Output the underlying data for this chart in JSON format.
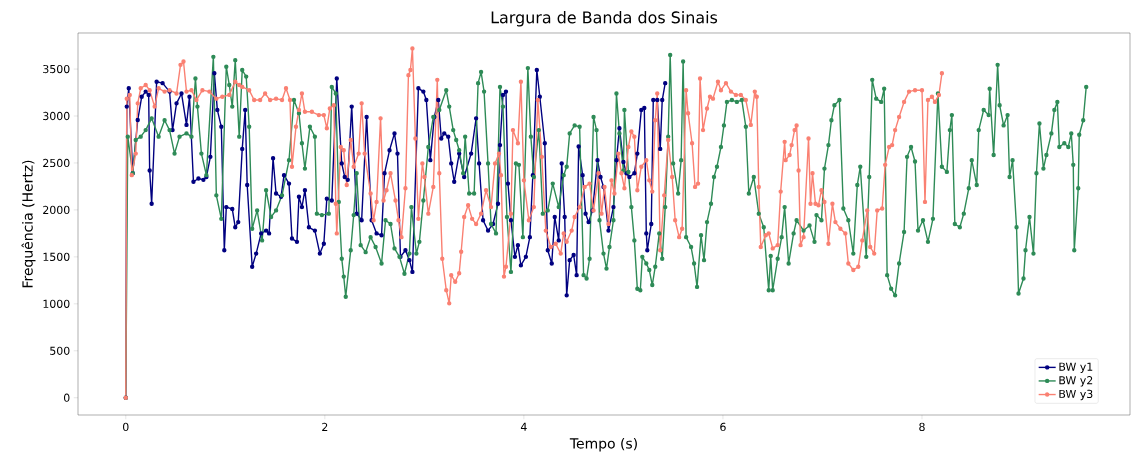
{
  "chart_data": {
    "type": "line",
    "title": "Largura de Banda dos Sinais",
    "xlabel": "Tempo (s)",
    "ylabel": "Frequência (Hertz)",
    "xlim": [
      -0.48,
      10.09
    ],
    "ylim": [
      -184,
      3884
    ],
    "xticks": [
      0,
      2,
      4,
      6,
      8
    ],
    "yticks": [
      0,
      500,
      1000,
      1500,
      2000,
      2500,
      3000,
      3500
    ],
    "grid": false,
    "legend": "bottom right",
    "marker": "circle",
    "line_style": "solid",
    "series": [
      {
        "name": "BW y1",
        "color": "#000080",
        "x": [
          0,
          0.01,
          0.03,
          0.07,
          0.12,
          0.16,
          0.2,
          0.23,
          0.24,
          0.26,
          0.31,
          0.37,
          0.44,
          0.47,
          0.51,
          0.56,
          0.61,
          0.64,
          0.68,
          0.73,
          0.78,
          0.81,
          0.85,
          0.89,
          0.92,
          0.96,
          0.99,
          1.01,
          1.07,
          1.1,
          1.13,
          1.17,
          1.2,
          1.22,
          1.27,
          1.31,
          1.36,
          1.41,
          1.44,
          1.48,
          1.51,
          1.56,
          1.59,
          1.64,
          1.67,
          1.72,
          1.74,
          1.77,
          1.8,
          1.84,
          1.9,
          1.95,
          1.99,
          2.02,
          2.07,
          2.12,
          2.17,
          2.2,
          2.23,
          2.27,
          2.32,
          2.37,
          2.42,
          2.47,
          2.52,
          2.57,
          2.6,
          2.65,
          2.7,
          2.73,
          2.76,
          2.81,
          2.85,
          2.88,
          2.94,
          2.99,
          3.02,
          3.06,
          3.1,
          3.14,
          3.17,
          3.2,
          3.24,
          3.27,
          3.3,
          3.35,
          3.4,
          3.47,
          3.52,
          3.55,
          3.59,
          3.64,
          3.69,
          3.74,
          3.76,
          3.79,
          3.82,
          3.84,
          3.87,
          3.91,
          3.94,
          3.97,
          4.02,
          4.06,
          4.09,
          4.13,
          4.16,
          4.21,
          4.24,
          4.28,
          4.31,
          4.35,
          4.38,
          4.41,
          4.43,
          4.46,
          4.5,
          4.53,
          4.55,
          4.59,
          4.62,
          4.65,
          4.69,
          4.74,
          4.77,
          4.8,
          4.85,
          4.9,
          4.93,
          4.96,
          5.0,
          5.03,
          5.06,
          5.11,
          5.14,
          5.18,
          5.21,
          5.23,
          5.24,
          5.28,
          5.3,
          5.34,
          5.37,
          5.39,
          5.42
        ],
        "values": [
          0,
          3100,
          3295,
          2390,
          2957,
          3205,
          3260,
          3225,
          2420,
          2065,
          3365,
          3350,
          3260,
          2850,
          3135,
          3240,
          2905,
          3205,
          2300,
          2335,
          2320,
          2350,
          2565,
          3455,
          3065,
          2885,
          1570,
          2030,
          2010,
          1815,
          1870,
          2650,
          3065,
          2265,
          1395,
          1535,
          1750,
          1780,
          1750,
          2550,
          2175,
          2140,
          2370,
          2280,
          1695,
          1660,
          2140,
          2030,
          2210,
          1815,
          1780,
          1535,
          1640,
          2120,
          2100,
          3400,
          2495,
          2350,
          2320,
          3100,
          1960,
          1890,
          2990,
          1890,
          1750,
          1730,
          2390,
          2635,
          2815,
          2600,
          1500,
          1570,
          1465,
          1340,
          3295,
          3260,
          3170,
          2530,
          2990,
          3170,
          2760,
          2815,
          2780,
          2495,
          2300,
          2600,
          2350,
          2600,
          2975,
          2495,
          1890,
          1780,
          1850,
          2065,
          2690,
          3225,
          3260,
          2280,
          1890,
          1500,
          1625,
          1410,
          1500,
          1710,
          2370,
          3490,
          3205,
          2710,
          1570,
          1430,
          1925,
          1675,
          2495,
          1925,
          1090,
          1465,
          1520,
          1305,
          2675,
          2370,
          1960,
          1870,
          1995,
          2530,
          2350,
          2245,
          1780,
          2030,
          2530,
          2870,
          2510,
          2390,
          2350,
          2390,
          2600,
          3065,
          3085,
          1750,
          1570,
          1850,
          3170,
          3170,
          2650,
          3170,
          3350
        ]
      },
      {
        "name": "BW y2",
        "color": "#2e8b57",
        "x": [
          0,
          0.02,
          0.07,
          0.1,
          0.15,
          0.2,
          0.26,
          0.33,
          0.39,
          0.44,
          0.49,
          0.54,
          0.61,
          0.66,
          0.7,
          0.72,
          0.76,
          0.81,
          0.88,
          0.91,
          0.96,
          1.01,
          1.04,
          1.07,
          1.1,
          1.14,
          1.17,
          1.21,
          1.24,
          1.27,
          1.32,
          1.37,
          1.41,
          1.46,
          1.51,
          1.57,
          1.64,
          1.69,
          1.74,
          1.77,
          1.8,
          1.85,
          1.9,
          1.92,
          1.97,
          2.04,
          2.07,
          2.11,
          2.14,
          2.17,
          2.19,
          2.21,
          2.26,
          2.29,
          2.32,
          2.36,
          2.41,
          2.46,
          2.51,
          2.57,
          2.61,
          2.66,
          2.7,
          2.75,
          2.8,
          2.85,
          2.87,
          2.92,
          2.95,
          2.99,
          3.04,
          3.09,
          3.15,
          3.22,
          3.25,
          3.29,
          3.32,
          3.35,
          3.39,
          3.41,
          3.45,
          3.5,
          3.54,
          3.57,
          3.6,
          3.64,
          3.67,
          3.72,
          3.76,
          3.79,
          3.83,
          3.87,
          3.92,
          3.95,
          3.99,
          4.04,
          4.07,
          4.1,
          4.15,
          4.19,
          4.24,
          4.29,
          4.35,
          4.4,
          4.43,
          4.46,
          4.51,
          4.56,
          4.6,
          4.63,
          4.66,
          4.7,
          4.73,
          4.76,
          4.8,
          4.83,
          4.86,
          4.9,
          4.93,
          4.96,
          5.0,
          5.01,
          5.05,
          5.08,
          5.11,
          5.14,
          5.17,
          5.19,
          5.23,
          5.26,
          5.29,
          5.32,
          5.36,
          5.39,
          5.42,
          5.45,
          5.47,
          5.5,
          5.55,
          5.58,
          5.6,
          5.63,
          5.68,
          5.71,
          5.74,
          5.78,
          5.81,
          5.84,
          5.88,
          5.91,
          5.94,
          5.98,
          6.01,
          6.04,
          6.09,
          6.14,
          6.19,
          6.23,
          6.26,
          6.31,
          6.36,
          6.41,
          6.46,
          6.48,
          6.5,
          6.55,
          6.59,
          6.62,
          6.66,
          6.71,
          6.74,
          6.81,
          6.87,
          6.92,
          6.94,
          6.99,
          7.02,
          7.06,
          7.09,
          7.12,
          7.17,
          7.21,
          7.26,
          7.31,
          7.35,
          7.38,
          7.44,
          7.47,
          7.5,
          7.54,
          7.59,
          7.62,
          7.65,
          7.69,
          7.73,
          7.77,
          7.82,
          7.85,
          7.89,
          7.93,
          7.96,
          8.01,
          8.06,
          8.11,
          8.16,
          8.2,
          8.25,
          8.28,
          8.3,
          8.33,
          8.38,
          8.42,
          8.47,
          8.5,
          8.55,
          8.57,
          8.62,
          8.67,
          8.68,
          8.72,
          8.76,
          8.78,
          8.82,
          8.86,
          8.88,
          8.91,
          8.95,
          8.97,
          9.02,
          9.04,
          9.08,
          9.12,
          9.15,
          9.18,
          9.22,
          9.25,
          9.3,
          9.33,
          9.36,
          9.38,
          9.43,
          9.47,
          9.5,
          9.52,
          9.53,
          9.57,
          9.58,
          9.62,
          9.65
        ],
        "values": [
          0,
          2780,
          2390,
          2745,
          2780,
          2850,
          2975,
          2780,
          2955,
          2850,
          2600,
          2780,
          2815,
          2780,
          3400,
          3100,
          2600,
          2370,
          3630,
          2155,
          1905,
          3525,
          3330,
          3100,
          3595,
          2780,
          3490,
          3420,
          2885,
          1800,
          1995,
          1675,
          2210,
          1925,
          1995,
          2155,
          2530,
          3170,
          3030,
          2710,
          2440,
          2885,
          2780,
          1960,
          1945,
          1960,
          3310,
          3240,
          2085,
          1480,
          1290,
          1075,
          1570,
          1945,
          2390,
          1625,
          1550,
          1710,
          1605,
          1430,
          1890,
          1850,
          1590,
          1500,
          1320,
          1535,
          2030,
          1535,
          1660,
          2100,
          2670,
          2990,
          3065,
          3275,
          3100,
          2850,
          2745,
          2635,
          2390,
          2780,
          2175,
          2175,
          3350,
          3470,
          3260,
          2495,
          1850,
          1750,
          3310,
          3100,
          1925,
          1340,
          2495,
          2480,
          1710,
          3510,
          2780,
          2350,
          2850,
          1960,
          1995,
          2280,
          2030,
          2370,
          2460,
          2815,
          2900,
          2885,
          1305,
          1270,
          1480,
          2990,
          2850,
          1890,
          1535,
          1375,
          1605,
          1890,
          3240,
          2815,
          2420,
          3065,
          2405,
          2030,
          1675,
          1160,
          1145,
          1500,
          1430,
          1360,
          1200,
          1395,
          1750,
          1480,
          2030,
          2780,
          3650,
          2495,
          2175,
          2530,
          3580,
          1710,
          1605,
          1430,
          1180,
          1730,
          1465,
          1870,
          2065,
          2350,
          2460,
          2670,
          2900,
          3150,
          3170,
          3150,
          3170,
          2885,
          2175,
          2350,
          1960,
          1815,
          1145,
          1510,
          1145,
          1480,
          1710,
          2030,
          1430,
          1750,
          1890,
          1780,
          1835,
          1660,
          1945,
          1890,
          2440,
          2690,
          2955,
          3115,
          3170,
          2015,
          1890,
          1535,
          2265,
          2460,
          1500,
          2350,
          3385,
          3185,
          3150,
          3290,
          1305,
          1160,
          1090,
          1430,
          1765,
          2565,
          2670,
          2515,
          1780,
          1890,
          1660,
          1905,
          3240,
          2460,
          2405,
          2850,
          3010,
          1850,
          1815,
          1960,
          2230,
          2530,
          2265,
          2850,
          3065,
          3010,
          3290,
          2585,
          3545,
          3115,
          2900,
          3010,
          2350,
          2530,
          1815,
          1110,
          1270,
          1570,
          1925,
          1535,
          2390,
          2920,
          2440,
          2585,
          2815,
          3065,
          3150,
          2670,
          2710,
          2670,
          2815,
          2480,
          1570,
          2230,
          2800,
          2955,
          3310
        ]
      },
      {
        "name": "BW y3",
        "color": "#fa8072",
        "x": [
          0,
          0.01,
          0.04,
          0.06,
          0.1,
          0.12,
          0.15,
          0.2,
          0.24,
          0.29,
          0.33,
          0.39,
          0.44,
          0.51,
          0.55,
          0.58,
          0.61,
          0.66,
          0.71,
          0.77,
          0.84,
          0.91,
          0.97,
          1.04,
          1.1,
          1.14,
          1.17,
          1.24,
          1.29,
          1.35,
          1.4,
          1.45,
          1.51,
          1.57,
          1.61,
          1.65,
          1.67,
          1.71,
          1.74,
          1.77,
          1.8,
          1.87,
          1.94,
          1.99,
          2.02,
          2.05,
          2.09,
          2.11,
          2.12,
          2.16,
          2.19,
          2.22,
          2.26,
          2.29,
          2.34,
          2.37,
          2.4,
          2.46,
          2.49,
          2.52,
          2.56,
          2.59,
          2.62,
          2.66,
          2.71,
          2.74,
          2.77,
          2.81,
          2.84,
          2.86,
          2.88,
          2.91,
          2.94,
          2.98,
          3.0,
          3.04,
          3.09,
          3.13,
          3.15,
          3.18,
          3.22,
          3.25,
          3.27,
          3.31,
          3.35,
          3.37,
          3.4,
          3.44,
          3.48,
          3.52,
          3.57,
          3.62,
          3.67,
          3.71,
          3.75,
          3.77,
          3.8,
          3.82,
          3.87,
          3.89,
          3.94,
          3.97,
          4.0,
          4.05,
          4.1,
          4.14,
          4.18,
          4.22,
          4.27,
          4.32,
          4.37,
          4.4,
          4.43,
          4.48,
          4.51,
          4.56,
          4.61,
          4.66,
          4.7,
          4.75,
          4.78,
          4.81,
          4.85,
          4.88,
          4.91,
          4.95,
          4.98,
          5.01,
          5.05,
          5.08,
          5.11,
          5.14,
          5.18,
          5.23,
          5.26,
          5.29,
          5.32,
          5.34,
          5.37,
          5.41,
          5.45,
          5.49,
          5.52,
          5.56,
          5.59,
          5.63,
          5.65,
          5.69,
          5.72,
          5.75,
          5.77,
          5.8,
          5.84,
          5.87,
          5.9,
          5.95,
          5.98,
          6.03,
          6.08,
          6.13,
          6.18,
          6.23,
          6.28,
          6.32,
          6.34,
          6.36,
          6.38,
          6.43,
          6.46,
          6.5,
          6.55,
          6.58,
          6.62,
          6.63,
          6.67,
          6.69,
          6.72,
          6.74,
          6.76,
          6.78,
          6.81,
          6.86,
          6.88,
          6.9,
          6.93,
          6.96,
          6.99,
          7.02,
          7.06,
          7.1,
          7.13,
          7.18,
          7.23,
          7.26,
          7.31,
          7.36,
          7.4,
          7.45,
          7.48,
          7.52,
          7.55,
          7.6,
          7.63,
          7.67,
          7.7,
          7.73,
          7.77,
          7.82,
          7.87,
          7.93,
          8.0,
          8.03,
          8.06,
          8.1,
          8.13,
          8.17,
          8.2
        ],
        "values": [
          0,
          3185,
          3225,
          2370,
          2600,
          3135,
          3295,
          3330,
          3275,
          3100,
          3295,
          3260,
          3275,
          3240,
          3545,
          3580,
          3260,
          3275,
          3170,
          3275,
          3260,
          3185,
          3205,
          3225,
          3365,
          3330,
          3310,
          3275,
          3170,
          3170,
          3240,
          3170,
          3185,
          3170,
          3295,
          3170,
          2460,
          2885,
          3065,
          3240,
          3045,
          3045,
          3010,
          3010,
          2870,
          3080,
          3115,
          2065,
          1750,
          2670,
          2635,
          2265,
          2745,
          2460,
          2600,
          3135,
          2600,
          2175,
          1890,
          2085,
          2975,
          2100,
          2210,
          2390,
          2100,
          1890,
          1710,
          2230,
          3435,
          3490,
          3720,
          2760,
          1905,
          2495,
          2350,
          1960,
          2245,
          3385,
          2390,
          1480,
          1145,
          1005,
          1305,
          1235,
          1325,
          1555,
          1925,
          2050,
          1905,
          1850,
          1960,
          2210,
          2030,
          2495,
          2600,
          2370,
          1290,
          1395,
          1960,
          2850,
          2710,
          3365,
          2315,
          1890,
          2030,
          3170,
          2565,
          1780,
          1605,
          1640,
          1535,
          1750,
          1660,
          1780,
          1925,
          2030,
          2245,
          2280,
          1995,
          2390,
          1960,
          2245,
          1850,
          2315,
          2175,
          2600,
          2390,
          2230,
          2670,
          2835,
          2780,
          2210,
          2460,
          2530,
          2315,
          2195,
          2955,
          3240,
          1570,
          2155,
          2745,
          2350,
          1890,
          1710,
          1800,
          3275,
          3030,
          2710,
          2245,
          2280,
          3400,
          2850,
          3080,
          3205,
          3185,
          3365,
          3275,
          3350,
          3260,
          3225,
          3225,
          3170,
          2905,
          3260,
          3205,
          2245,
          1605,
          1730,
          1750,
          1590,
          1625,
          2195,
          2725,
          2530,
          2585,
          2690,
          2850,
          2900,
          2420,
          1625,
          1710,
          2760,
          2065,
          2390,
          2065,
          2050,
          2210,
          2085,
          1640,
          2065,
          1870,
          1800,
          1750,
          1430,
          1360,
          1395,
          1675,
          1995,
          1605,
          1535,
          1995,
          2015,
          2480,
          2670,
          2690,
          2850,
          2990,
          3150,
          3260,
          3275,
          3275,
          2085,
          3170,
          3205,
          3150,
          3225,
          3455
        ]
      }
    ]
  }
}
